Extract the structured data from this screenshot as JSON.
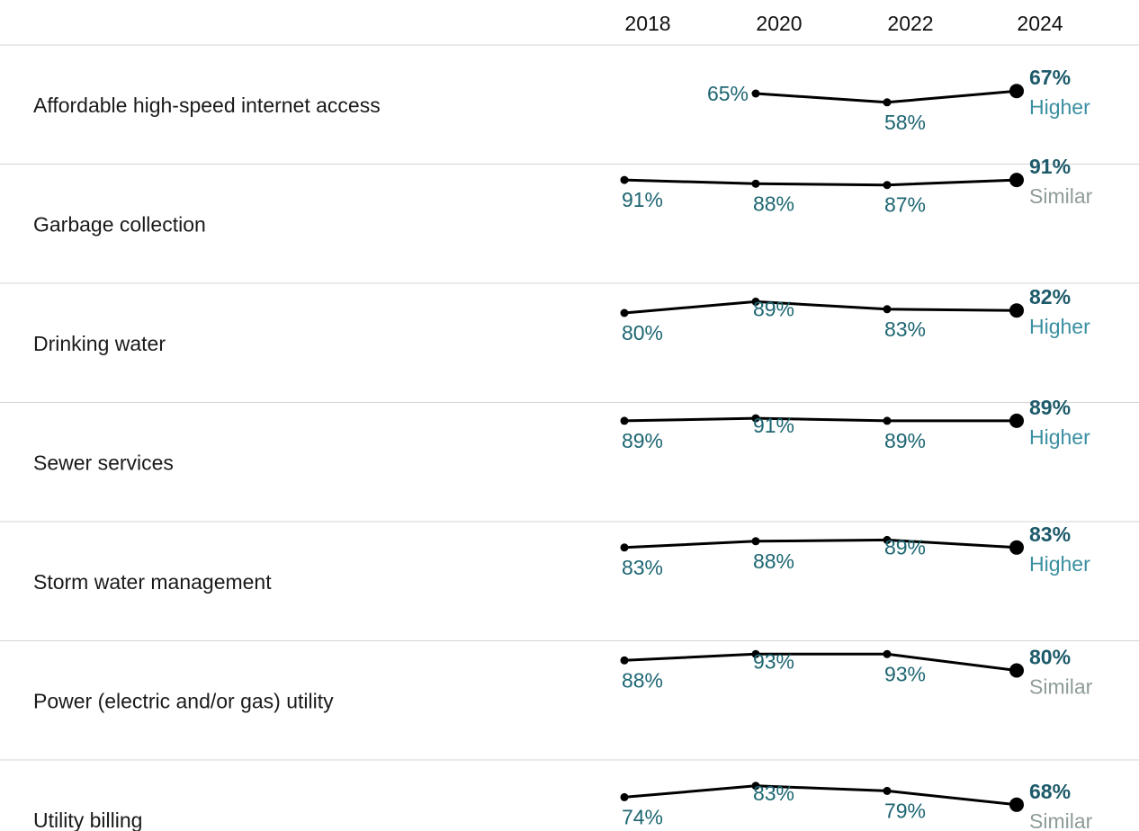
{
  "colors": {
    "value_label": "#1d6672",
    "final_value": "#1d5a6a",
    "higher": "#3a8fa0",
    "similar": "#8f9c98",
    "line": "#000000"
  },
  "chart_data": {
    "type": "line",
    "years": [
      "2018",
      "2020",
      "2022",
      "2024"
    ],
    "value_unit": "%",
    "rows": [
      {
        "label": "Affordable high-speed internet access",
        "values": [
          null,
          65,
          58,
          67
        ],
        "comparison": "Higher"
      },
      {
        "label": "Garbage collection",
        "values": [
          91,
          88,
          87,
          91
        ],
        "comparison": "Similar"
      },
      {
        "label": "Drinking water",
        "values": [
          80,
          89,
          83,
          82
        ],
        "comparison": "Higher"
      },
      {
        "label": "Sewer services",
        "values": [
          89,
          91,
          89,
          89
        ],
        "comparison": "Higher"
      },
      {
        "label": "Storm water management",
        "values": [
          83,
          88,
          89,
          83
        ],
        "comparison": "Higher"
      },
      {
        "label": "Power (electric and/or gas) utility",
        "values": [
          88,
          93,
          93,
          80
        ],
        "comparison": "Similar"
      },
      {
        "label": "Utility billing",
        "values": [
          74,
          83,
          79,
          68
        ],
        "comparison": "Similar"
      }
    ]
  }
}
